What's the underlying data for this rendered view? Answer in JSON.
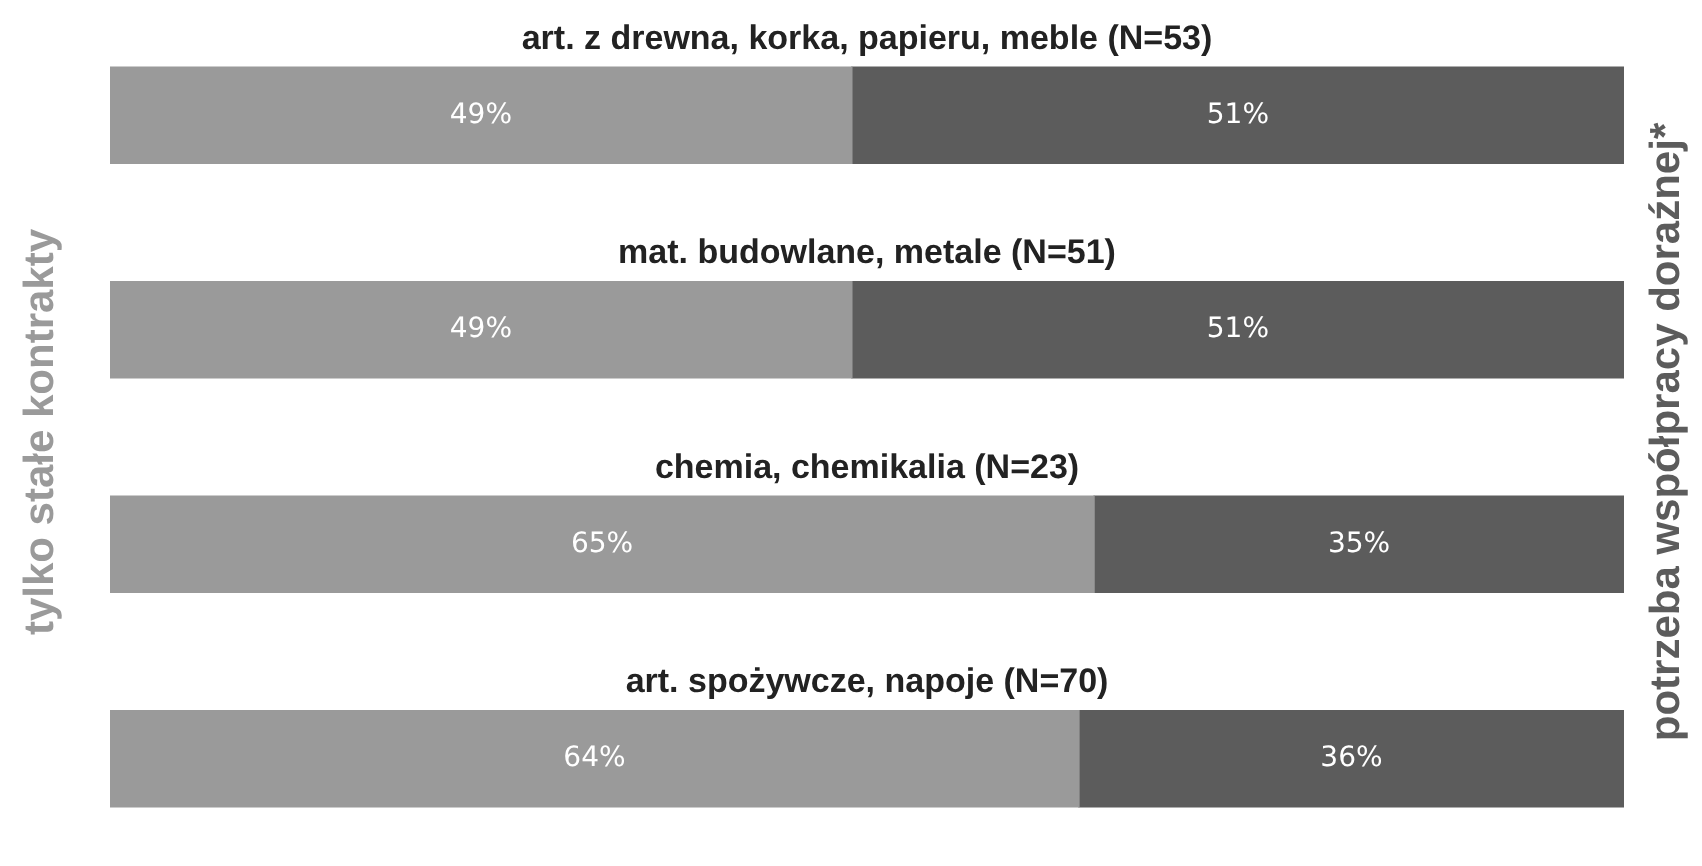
{
  "chart_data": {
    "type": "bar",
    "orientation": "horizontal",
    "stacked": true,
    "categories": [
      "art. z drewna, korka, papieru, meble (N=53)",
      "mat. budowlane, metale (N=51)",
      "chemia, chemikalia (N=23)",
      "art. spożywcze, napoje (N=70)"
    ],
    "xlim": [
      0,
      100
    ],
    "tick_labels": false,
    "series": [
      {
        "name": "tylko stałe kontrakty",
        "color": "#9a9a9a",
        "values": [
          49,
          49,
          65,
          64
        ],
        "value_labels": [
          "49%",
          "49%",
          "65%",
          "64%"
        ]
      },
      {
        "name": "potrzeba współpracy doraźnej*",
        "color": "#5c5c5c",
        "values": [
          51,
          51,
          35,
          36
        ],
        "value_labels": [
          "51%",
          "51%",
          "35%",
          "36%"
        ]
      }
    ]
  }
}
